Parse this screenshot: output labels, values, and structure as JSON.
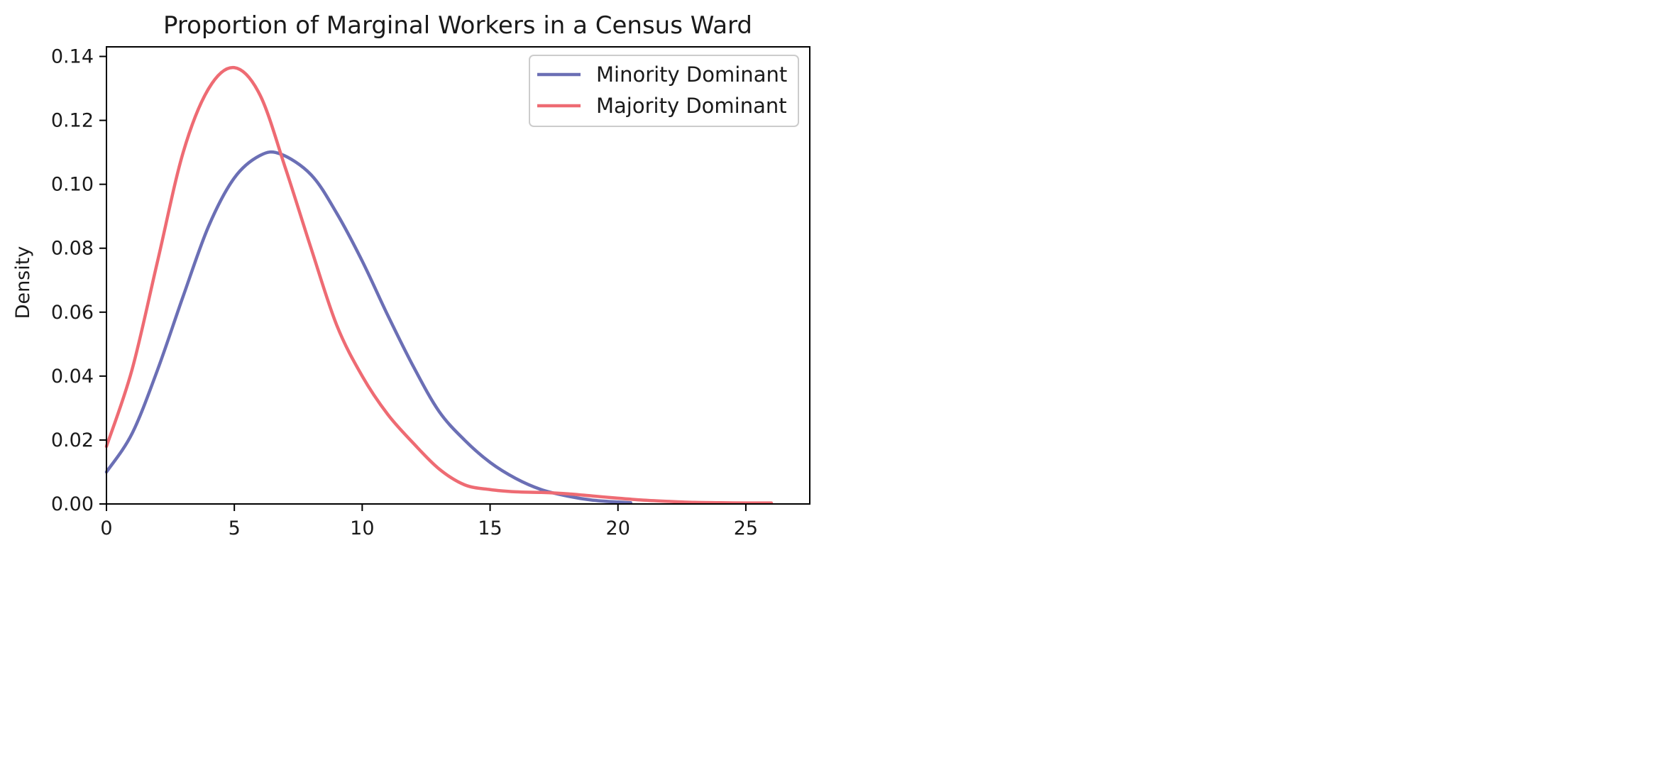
{
  "chart_data": {
    "type": "line",
    "title": "Proportion of Marginal Workers in a Census Ward",
    "xlabel": "",
    "ylabel": "Density",
    "xlim": [
      0,
      27.5
    ],
    "ylim": [
      0,
      0.143
    ],
    "xticks": [
      0,
      5,
      10,
      15,
      20,
      25
    ],
    "xtick_labels": [
      "0",
      "5",
      "10",
      "15",
      "20",
      "25"
    ],
    "yticks": [
      0,
      0.02,
      0.04,
      0.06,
      0.08,
      0.1,
      0.12,
      0.14
    ],
    "ytick_labels": [
      "0.00",
      "0.02",
      "0.04",
      "0.06",
      "0.08",
      "0.10",
      "0.12",
      "0.14"
    ],
    "grid": false,
    "legend_position": "top-right",
    "series": [
      {
        "name": "Minority Dominant",
        "color": "#6b6fb5",
        "x": [
          0,
          1,
          2,
          3,
          4,
          5,
          6,
          6.8,
          8,
          9,
          10,
          11,
          12,
          13,
          14,
          15,
          16,
          17,
          18,
          19,
          20,
          20.5
        ],
        "y": [
          0.01,
          0.022,
          0.042,
          0.065,
          0.087,
          0.102,
          0.109,
          0.1095,
          0.103,
          0.091,
          0.076,
          0.059,
          0.043,
          0.029,
          0.02,
          0.013,
          0.008,
          0.0045,
          0.0025,
          0.0012,
          0.0006,
          0.0004
        ]
      },
      {
        "name": "Majority Dominant",
        "color": "#ee6b73",
        "x": [
          0,
          1,
          2,
          3,
          4,
          5,
          6,
          7,
          8,
          9,
          10,
          11,
          12,
          13,
          14,
          15,
          16,
          17,
          18,
          19,
          20,
          21,
          22,
          23,
          24,
          25,
          26
        ],
        "y": [
          0.018,
          0.042,
          0.076,
          0.11,
          0.13,
          0.1365,
          0.128,
          0.105,
          0.08,
          0.056,
          0.04,
          0.028,
          0.019,
          0.011,
          0.006,
          0.0045,
          0.0038,
          0.0036,
          0.0032,
          0.0025,
          0.0018,
          0.0012,
          0.0008,
          0.0005,
          0.0004,
          0.0003,
          0.0003
        ]
      }
    ]
  }
}
